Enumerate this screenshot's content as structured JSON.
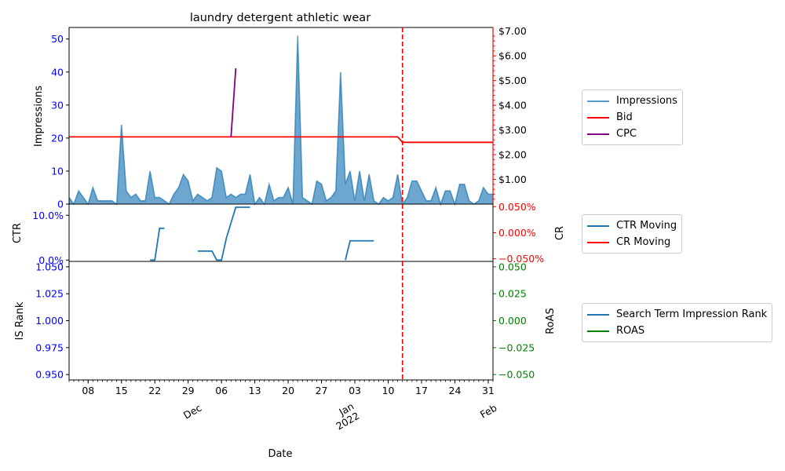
{
  "chart_data": {
    "type": "line",
    "title": "laundry detergent athletic wear",
    "xlabel": "Date",
    "x_start": "2021-11-04",
    "x_end": "2022-02-01",
    "vline_date": "2022-01-13",
    "colors": {
      "impressions": "#1f77b4",
      "bid": "#ff0000",
      "cpc": "#800080",
      "ctr": "#1f77b4",
      "cr": "#ff0000",
      "isrank": "#1f77b4",
      "roas": "#008000",
      "axis_blue": "#0000ff",
      "axis_red": "#ff0000",
      "axis_green": "#008000"
    },
    "x_ticks": {
      "day_labels": [
        {
          "date": "2021-11-08",
          "label": "08"
        },
        {
          "date": "2021-11-15",
          "label": "15"
        },
        {
          "date": "2021-11-22",
          "label": "22"
        },
        {
          "date": "2021-11-29",
          "label": "29"
        },
        {
          "date": "2021-12-06",
          "label": "06"
        },
        {
          "date": "2021-12-13",
          "label": "13"
        },
        {
          "date": "2021-12-20",
          "label": "20"
        },
        {
          "date": "2021-12-27",
          "label": "27"
        },
        {
          "date": "2022-01-03",
          "label": "03"
        },
        {
          "date": "2022-01-10",
          "label": "10"
        },
        {
          "date": "2022-01-17",
          "label": "17"
        },
        {
          "date": "2022-01-24",
          "label": "24"
        },
        {
          "date": "2022-01-31",
          "label": "31"
        }
      ],
      "month_labels": [
        {
          "date": "2021-12-01",
          "label": "Dec"
        },
        {
          "date": "2022-01-01",
          "label": "Jan\n2022"
        },
        {
          "date": "2022-02-01",
          "label": "Feb"
        }
      ]
    },
    "panel_top": {
      "left_label": "Impressions",
      "left_ylim": [
        0,
        53.5
      ],
      "left_ticks": [
        "0",
        "10",
        "20",
        "30",
        "40",
        "50"
      ],
      "right_ylim": [
        0,
        7.15
      ],
      "right_ticks": [
        "$1.00",
        "$2.00",
        "$3.00",
        "$4.00",
        "$5.00",
        "$6.00",
        "$7.00"
      ],
      "impressions": {
        "name": "Impressions",
        "dates": [
          "2021-11-04",
          "2021-11-05",
          "2021-11-06",
          "2021-11-07",
          "2021-11-08",
          "2021-11-09",
          "2021-11-10",
          "2021-11-11",
          "2021-11-12",
          "2021-11-13",
          "2021-11-14",
          "2021-11-15",
          "2021-11-16",
          "2021-11-17",
          "2021-11-18",
          "2021-11-19",
          "2021-11-20",
          "2021-11-21",
          "2021-11-22",
          "2021-11-23",
          "2021-11-24",
          "2021-11-25",
          "2021-11-26",
          "2021-11-27",
          "2021-11-28",
          "2021-11-29",
          "2021-11-30",
          "2021-12-01",
          "2021-12-02",
          "2021-12-03",
          "2021-12-04",
          "2021-12-05",
          "2021-12-06",
          "2021-12-07",
          "2021-12-08",
          "2021-12-09",
          "2021-12-10",
          "2021-12-11",
          "2021-12-12",
          "2021-12-13",
          "2021-12-14",
          "2021-12-15",
          "2021-12-16",
          "2021-12-17",
          "2021-12-18",
          "2021-12-19",
          "2021-12-20",
          "2021-12-21",
          "2021-12-22",
          "2021-12-23",
          "2021-12-24",
          "2021-12-25",
          "2021-12-26",
          "2021-12-27",
          "2021-12-28",
          "2021-12-29",
          "2021-12-30",
          "2021-12-31",
          "2022-01-01",
          "2022-01-02",
          "2022-01-03",
          "2022-01-04",
          "2022-01-05",
          "2022-01-06",
          "2022-01-07",
          "2022-01-08",
          "2022-01-09",
          "2022-01-10",
          "2022-01-11",
          "2022-01-12",
          "2022-01-13",
          "2022-01-14",
          "2022-01-15",
          "2022-01-16",
          "2022-01-17",
          "2022-01-18",
          "2022-01-19",
          "2022-01-20",
          "2022-01-21",
          "2022-01-22",
          "2022-01-23",
          "2022-01-24",
          "2022-01-25",
          "2022-01-26",
          "2022-01-27",
          "2022-01-28",
          "2022-01-29",
          "2022-01-30",
          "2022-01-31",
          "2022-02-01"
        ],
        "values": [
          2,
          0,
          4,
          2,
          0,
          5,
          1,
          1,
          1,
          1,
          0,
          24,
          4,
          2,
          3,
          1,
          1,
          10,
          2,
          2,
          1,
          0,
          3,
          5,
          9,
          7,
          1,
          3,
          2,
          1,
          2,
          11,
          10,
          2,
          3,
          2,
          3,
          3,
          9,
          0,
          2,
          0,
          6,
          1,
          2,
          2,
          5,
          0,
          51,
          2,
          1,
          0,
          7,
          6,
          1,
          2,
          4,
          40,
          6,
          10,
          1,
          10,
          1,
          9,
          1,
          0,
          2,
          1,
          2,
          9,
          0,
          2,
          7,
          7,
          4,
          1,
          1,
          5,
          0,
          4,
          4,
          0,
          6,
          6,
          1,
          0,
          1,
          5,
          3,
          3
        ]
      },
      "bid": {
        "name": "Bid",
        "points": [
          {
            "date": "2021-11-04",
            "value": 2.72
          },
          {
            "date": "2022-01-12",
            "value": 2.72
          },
          {
            "date": "2022-01-13",
            "value": 2.5
          },
          {
            "date": "2022-02-01",
            "value": 2.5
          }
        ]
      },
      "cpc": {
        "name": "CPC",
        "points": [
          {
            "date": "2021-12-08",
            "value": 2.72
          },
          {
            "date": "2021-12-09",
            "value": 5.5
          }
        ]
      }
    },
    "panel_mid": {
      "left_label": "CTR",
      "left_ylim": [
        -0.3,
        12.5
      ],
      "left_ticks": [
        {
          "value": 0,
          "label": "0.0%"
        },
        {
          "value": 10,
          "label": "10.0%"
        }
      ],
      "right_label": "CR",
      "right_ylim": [
        -0.055,
        0.055
      ],
      "right_ticks": [
        {
          "value": -0.05,
          "label": "−0.050%"
        },
        {
          "value": 0,
          "label": "0.000%"
        },
        {
          "value": 0.05,
          "label": "0.050%"
        }
      ],
      "ctr_moving": {
        "name": "CTR Moving",
        "segments": [
          [
            {
              "date": "2021-11-21",
              "value": 0
            },
            {
              "date": "2021-11-22",
              "value": 0
            },
            {
              "date": "2021-11-23",
              "value": 7.1
            },
            {
              "date": "2021-11-24",
              "value": 7.1
            }
          ],
          [
            {
              "date": "2021-12-01",
              "value": 2
            },
            {
              "date": "2021-12-04",
              "value": 2
            },
            {
              "date": "2021-12-05",
              "value": 0
            },
            {
              "date": "2021-12-06",
              "value": 0
            },
            {
              "date": "2021-12-07",
              "value": 4.8
            },
            {
              "date": "2021-12-09",
              "value": 11.8
            },
            {
              "date": "2021-12-12",
              "value": 11.8
            }
          ],
          [
            {
              "date": "2022-01-01",
              "value": 0
            },
            {
              "date": "2022-01-02",
              "value": 4.3
            },
            {
              "date": "2022-01-07",
              "value": 4.3
            }
          ]
        ]
      },
      "cr_moving": {
        "name": "CR Moving"
      }
    },
    "panel_bot": {
      "left_label": "IS Rank",
      "left_ylim": [
        0.945,
        1.055
      ],
      "left_ticks": [
        "0.950",
        "0.975",
        "1.000",
        "1.025",
        "1.050"
      ],
      "right_label": "RoAS",
      "right_ylim": [
        -0.055,
        0.055
      ],
      "right_ticks": [
        "−0.050",
        "−0.025",
        "0.000",
        "0.025",
        "0.050"
      ],
      "isrank": {
        "name": "Search Term Impression Rank"
      },
      "roas": {
        "name": "ROAS"
      }
    },
    "legends": {
      "top": [
        "Impressions",
        "Bid",
        "CPC"
      ],
      "mid": [
        "CTR Moving",
        "CR Moving"
      ],
      "bot": [
        "Search Term Impression Rank",
        "ROAS"
      ]
    }
  }
}
